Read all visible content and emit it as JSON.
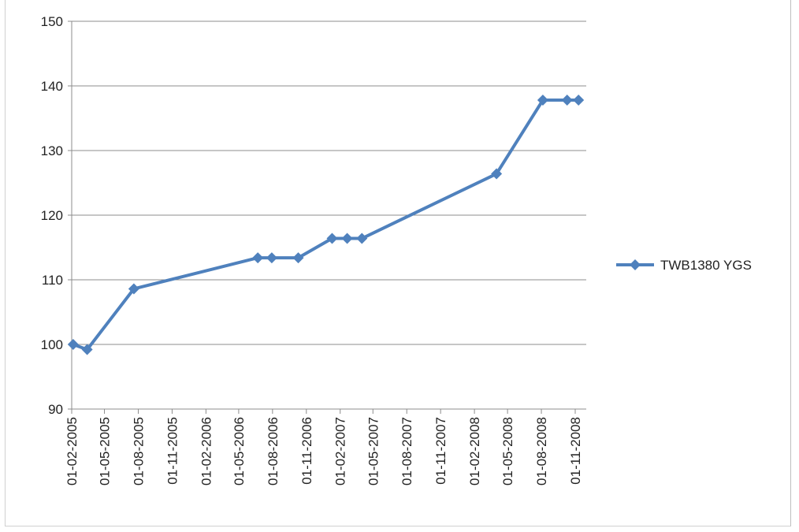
{
  "chart_data": {
    "type": "line",
    "title": "",
    "xlabel": "",
    "ylabel": "",
    "ylim": [
      90,
      150
    ],
    "yticks": [
      90,
      100,
      110,
      120,
      130,
      140,
      150
    ],
    "xlim": [
      "2005-02-01",
      "2008-12-01"
    ],
    "xticks": [
      "01-02-2005",
      "01-05-2005",
      "01-08-2005",
      "01-11-2005",
      "01-02-2006",
      "01-05-2006",
      "01-08-2006",
      "01-11-2006",
      "01-02-2007",
      "01-05-2007",
      "01-08-2007",
      "01-11-2007",
      "01-02-2008",
      "01-05-2008",
      "01-08-2008",
      "01-11-2008"
    ],
    "grid": "horizontal",
    "legend_position": "right",
    "color": "#4f81bd",
    "series": [
      {
        "name": "TWB1380 YGS",
        "points": [
          {
            "x": "2005-02-05",
            "y": 100
          },
          {
            "x": "2005-03-15",
            "y": 99.2
          },
          {
            "x": "2005-07-20",
            "y": 108.6
          },
          {
            "x": "2006-06-22",
            "y": 113.4
          },
          {
            "x": "2006-07-30",
            "y": 113.4
          },
          {
            "x": "2006-10-10",
            "y": 113.4
          },
          {
            "x": "2007-01-10",
            "y": 116.4
          },
          {
            "x": "2007-02-20",
            "y": 116.4
          },
          {
            "x": "2007-04-01",
            "y": 116.4
          },
          {
            "x": "2008-04-01",
            "y": 126.4
          },
          {
            "x": "2008-08-05",
            "y": 137.8
          },
          {
            "x": "2008-10-10",
            "y": 137.8
          },
          {
            "x": "2008-11-10",
            "y": 137.8
          }
        ]
      }
    ]
  }
}
